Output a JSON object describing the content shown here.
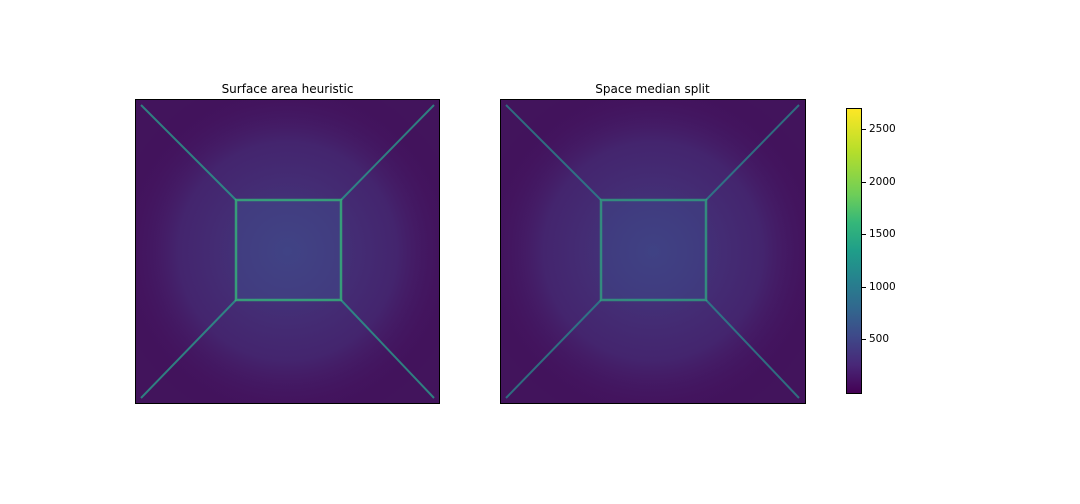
{
  "chart_data": [
    {
      "type": "heatmap",
      "title": "Surface area heuristic",
      "xlabel": "",
      "ylabel": "",
      "colormap": "viridis",
      "pattern": "bright lines along both diagonals converging on a bright square outline in the center"
    },
    {
      "type": "heatmap",
      "title": "Space median split",
      "xlabel": "",
      "ylabel": "",
      "colormap": "viridis",
      "pattern": "bright lines along both diagonals converging on a bright square outline in the center"
    }
  ],
  "colorbar": {
    "range": [
      0,
      2700
    ],
    "ticks": [
      {
        "value": 500,
        "label": "500"
      },
      {
        "value": 1000,
        "label": "1000"
      },
      {
        "value": 1500,
        "label": "1500"
      },
      {
        "value": 2000,
        "label": "2000"
      },
      {
        "value": 2500,
        "label": "2500"
      }
    ],
    "colors": [
      "#440154",
      "#482878",
      "#3e4989",
      "#31688e",
      "#26828e",
      "#1f9e89",
      "#35b779",
      "#6ece58",
      "#b5de2b",
      "#fde725"
    ]
  }
}
